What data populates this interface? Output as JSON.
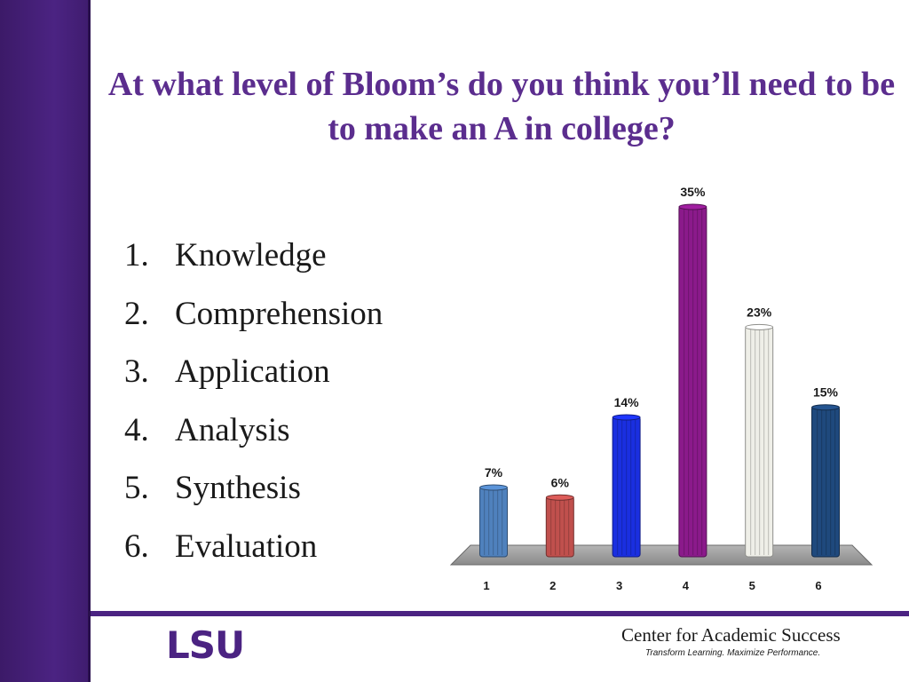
{
  "slide": {
    "title": "At what level of Bloom’s do you think you’ll need to be to make an A in college?",
    "options": [
      {
        "num": "1.",
        "label": "Knowledge"
      },
      {
        "num": "2.",
        "label": "Comprehension"
      },
      {
        "num": "3.",
        "label": "Application"
      },
      {
        "num": "4.",
        "label": "Analysis"
      },
      {
        "num": "5.",
        "label": "Synthesis"
      },
      {
        "num": "6.",
        "label": "Evaluation"
      }
    ]
  },
  "footer": {
    "logo_text": "LSU",
    "center_name": "Center for Academic Success",
    "tagline": "Transform Learning. Maximize Performance."
  },
  "colors": {
    "purple": "#4b2382",
    "title": "#5b2d8e"
  },
  "chart_data": {
    "type": "bar",
    "categories": [
      "1",
      "2",
      "3",
      "4",
      "5",
      "6"
    ],
    "values": [
      7,
      6,
      14,
      35,
      23,
      15
    ],
    "value_labels": [
      "7%",
      "6%",
      "14%",
      "35%",
      "23%",
      "15%"
    ],
    "ylim": [
      0,
      35
    ],
    "grid": false,
    "colors": [
      "#4f81bd",
      "#c0504d",
      "#1a2fe0",
      "#8b1a8b",
      "#efefe8",
      "#1f497d"
    ]
  }
}
